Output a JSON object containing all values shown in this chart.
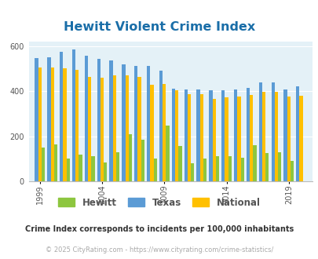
{
  "title": "Hewitt Violent Crime Index",
  "title_color": "#1a6ea8",
  "years": [
    1999,
    2000,
    2001,
    2002,
    2003,
    2004,
    2005,
    2006,
    2007,
    2008,
    2009,
    2010,
    2011,
    2012,
    2013,
    2014,
    2015,
    2016,
    2017,
    2018,
    2019,
    2020
  ],
  "hewitt": [
    148,
    163,
    102,
    118,
    112,
    85,
    130,
    210,
    183,
    102,
    247,
    155,
    80,
    102,
    110,
    110,
    103,
    161,
    125,
    128,
    90,
    0
  ],
  "texas": [
    547,
    550,
    575,
    585,
    557,
    542,
    535,
    520,
    510,
    510,
    492,
    410,
    408,
    408,
    403,
    403,
    408,
    415,
    437,
    440,
    408,
    420
  ],
  "national": [
    506,
    506,
    500,
    494,
    464,
    458,
    469,
    469,
    462,
    428,
    430,
    403,
    387,
    386,
    365,
    372,
    376,
    382,
    395,
    398,
    375,
    378
  ],
  "hewitt_color": "#8dc63f",
  "texas_color": "#5b9bd5",
  "national_color": "#ffc000",
  "plot_bg_color": "#e4f1f7",
  "ylim": [
    0,
    620
  ],
  "yticks": [
    0,
    200,
    400,
    600
  ],
  "xtick_labels": [
    "1999",
    "2004",
    "2009",
    "2014",
    "2019"
  ],
  "xtick_positions": [
    0,
    5,
    10,
    15,
    20
  ],
  "legend_labels": [
    "Hewitt",
    "Texas",
    "National"
  ],
  "footnote1": "Crime Index corresponds to incidents per 100,000 inhabitants",
  "footnote2": "© 2025 CityRating.com - https://www.cityrating.com/crime-statistics/",
  "footnote1_color": "#333333",
  "footnote2_color": "#aaaaaa",
  "bar_width": 0.27,
  "n_years": 22
}
